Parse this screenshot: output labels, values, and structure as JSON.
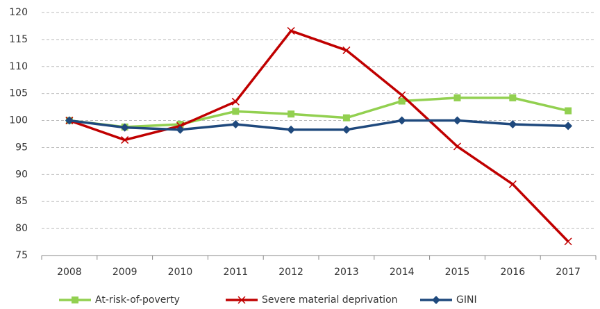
{
  "chart_data": {
    "type": "line",
    "categories": [
      "2008",
      "2009",
      "2010",
      "2011",
      "2012",
      "2013",
      "2014",
      "2015",
      "2016",
      "2017"
    ],
    "series": [
      {
        "name": "At-risk-of-poverty",
        "color": "#92d050",
        "marker": "square",
        "values": [
          100,
          98.8,
          99.3,
          101.7,
          101.2,
          100.5,
          103.6,
          104.2,
          104.2,
          101.8
        ]
      },
      {
        "name": "Severe material deprivation",
        "color": "#c00000",
        "marker": "x",
        "values": [
          100,
          96.4,
          99,
          103.5,
          116.6,
          113,
          104.7,
          95.2,
          88.2,
          77.6
        ]
      },
      {
        "name": "GINI",
        "color": "#1f497d",
        "marker": "diamond",
        "values": [
          100,
          98.7,
          98.3,
          99.3,
          98.3,
          98.3,
          100,
          100,
          99.3,
          99
        ]
      }
    ],
    "ylim": [
      75,
      120
    ],
    "yticks": [
      75,
      80,
      85,
      90,
      95,
      100,
      105,
      110,
      115,
      120
    ],
    "grid": true
  }
}
